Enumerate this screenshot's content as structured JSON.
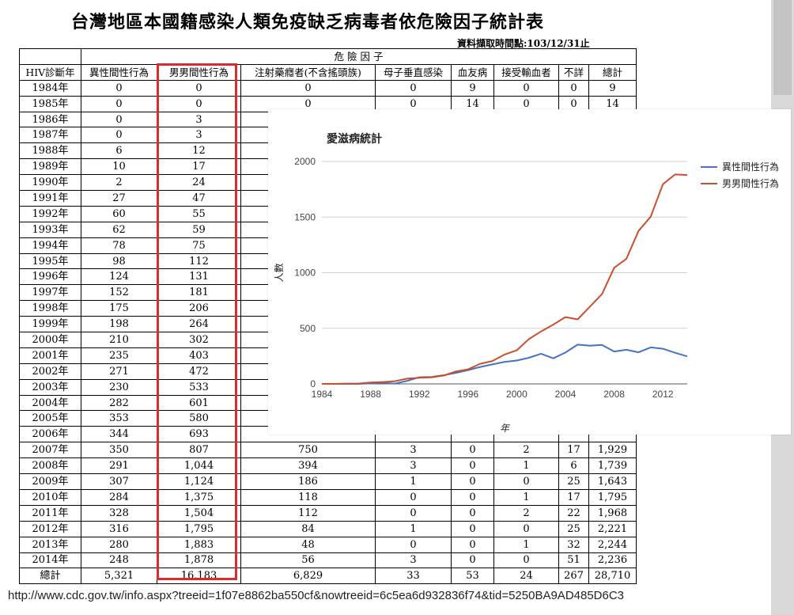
{
  "page": {
    "title": "台灣地區本國籍感染人類免疫缺乏病毒者依危險因子統計表",
    "timestamp": "資料擷取時間點:103/12/31止",
    "url": "http://www.cdc.gov.tw/info.aspx?treeid=1f07e8862ba550cf&nowtreeid=6c5ea6d932836f74&tid=5250BA9AD485D6C3"
  },
  "table": {
    "group_header": "危 險 因 子",
    "columns": [
      "HIV診斷年",
      "異性間性行為",
      "男男間性行為",
      "注射藥癮者(不含搖頭族)",
      "母子垂直感染",
      "血友病",
      "接受輸血者",
      "不詳",
      "總計"
    ],
    "rows": [
      [
        "1984年",
        "0",
        "0",
        "0",
        "0",
        "9",
        "0",
        "0",
        "9"
      ],
      [
        "1985年",
        "0",
        "0",
        "0",
        "0",
        "14",
        "0",
        "0",
        "14"
      ],
      [
        "1986年",
        "0",
        "3",
        "",
        "",
        "",
        "",
        "",
        ""
      ],
      [
        "1987年",
        "0",
        "3",
        "",
        "",
        "",
        "",
        "",
        ""
      ],
      [
        "1988年",
        "6",
        "12",
        "",
        "",
        "",
        "",
        "",
        ""
      ],
      [
        "1989年",
        "10",
        "17",
        "",
        "",
        "",
        "",
        "",
        ""
      ],
      [
        "1990年",
        "2",
        "24",
        "",
        "",
        "",
        "",
        "",
        ""
      ],
      [
        "1991年",
        "27",
        "47",
        "",
        "",
        "",
        "",
        "",
        ""
      ],
      [
        "1992年",
        "60",
        "55",
        "",
        "",
        "",
        "",
        "",
        ""
      ],
      [
        "1993年",
        "62",
        "59",
        "",
        "",
        "",
        "",
        "",
        ""
      ],
      [
        "1994年",
        "78",
        "75",
        "",
        "",
        "",
        "",
        "",
        ""
      ],
      [
        "1995年",
        "98",
        "112",
        "",
        "",
        "",
        "",
        "",
        ""
      ],
      [
        "1996年",
        "124",
        "131",
        "",
        "",
        "",
        "",
        "",
        ""
      ],
      [
        "1997年",
        "152",
        "181",
        "",
        "",
        "",
        "",
        "",
        ""
      ],
      [
        "1998年",
        "175",
        "206",
        "",
        "",
        "",
        "",
        "",
        ""
      ],
      [
        "1999年",
        "198",
        "264",
        "",
        "",
        "",
        "",
        "",
        ""
      ],
      [
        "2000年",
        "210",
        "302",
        "",
        "",
        "",
        "",
        "",
        ""
      ],
      [
        "2001年",
        "235",
        "403",
        "",
        "",
        "",
        "",
        "",
        ""
      ],
      [
        "2002年",
        "271",
        "472",
        "",
        "",
        "",
        "",
        "",
        ""
      ],
      [
        "2003年",
        "230",
        "533",
        "",
        "",
        "",
        "",
        "",
        ""
      ],
      [
        "2004年",
        "282",
        "601",
        "",
        "",
        "",
        "",
        "",
        ""
      ],
      [
        "2005年",
        "353",
        "580",
        "",
        "",
        "",
        "",
        "",
        ""
      ],
      [
        "2006年",
        "344",
        "693",
        "",
        "",
        "",
        "",
        "",
        ""
      ],
      [
        "2007年",
        "350",
        "807",
        "750",
        "3",
        "0",
        "2",
        "17",
        "1,929"
      ],
      [
        "2008年",
        "291",
        "1,044",
        "394",
        "3",
        "0",
        "1",
        "6",
        "1,739"
      ],
      [
        "2009年",
        "307",
        "1,124",
        "186",
        "1",
        "0",
        "0",
        "25",
        "1,643"
      ],
      [
        "2010年",
        "284",
        "1,375",
        "118",
        "0",
        "0",
        "1",
        "17",
        "1,795"
      ],
      [
        "2011年",
        "328",
        "1,504",
        "112",
        "0",
        "0",
        "2",
        "22",
        "1,968"
      ],
      [
        "2012年",
        "316",
        "1,795",
        "84",
        "1",
        "0",
        "0",
        "25",
        "2,221"
      ],
      [
        "2013年",
        "280",
        "1,883",
        "48",
        "0",
        "0",
        "1",
        "32",
        "2,244"
      ],
      [
        "2014年",
        "248",
        "1,878",
        "56",
        "3",
        "0",
        "0",
        "51",
        "2,236"
      ]
    ],
    "total": [
      "總計",
      "5,321",
      "16,183",
      "6,829",
      "33",
      "53",
      "24",
      "267",
      "28,710"
    ]
  },
  "chart_data": {
    "type": "line",
    "title": "愛滋病統計",
    "xlabel": "年",
    "ylabel": "人數",
    "xlim": [
      1984,
      2014
    ],
    "ylim": [
      0,
      2000
    ],
    "xticks": [
      1984,
      1988,
      1992,
      1996,
      2000,
      2004,
      2008,
      2012
    ],
    "yticks": [
      0,
      500,
      1000,
      1500,
      2000
    ],
    "legend_position": "right",
    "grid": "horizontal",
    "x": [
      1984,
      1985,
      1986,
      1987,
      1988,
      1989,
      1990,
      1991,
      1992,
      1993,
      1994,
      1995,
      1996,
      1997,
      1998,
      1999,
      2000,
      2001,
      2002,
      2003,
      2004,
      2005,
      2006,
      2007,
      2008,
      2009,
      2010,
      2011,
      2012,
      2013,
      2014
    ],
    "series": [
      {
        "name": "異性間性行為",
        "color": "#4472c4",
        "values": [
          0,
          0,
          0,
          0,
          6,
          10,
          2,
          27,
          60,
          62,
          78,
          98,
          124,
          152,
          175,
          198,
          210,
          235,
          271,
          230,
          282,
          353,
          344,
          350,
          291,
          307,
          284,
          328,
          316,
          280,
          248
        ]
      },
      {
        "name": "男男間性行為",
        "color": "#c8502d",
        "values": [
          0,
          0,
          3,
          3,
          12,
          17,
          24,
          47,
          55,
          59,
          75,
          112,
          131,
          181,
          206,
          264,
          302,
          403,
          472,
          533,
          601,
          580,
          693,
          807,
          1044,
          1124,
          1375,
          1504,
          1795,
          1883,
          1878
        ]
      }
    ]
  }
}
